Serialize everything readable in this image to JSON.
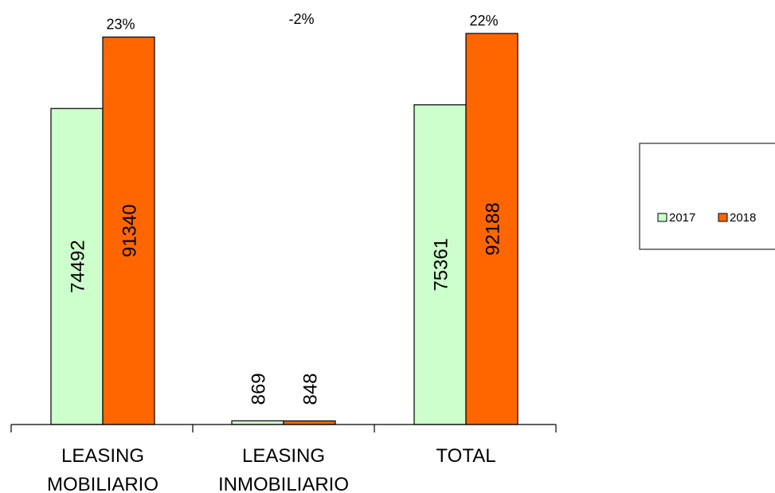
{
  "chart_data": {
    "type": "bar",
    "categories": [
      "LEASING MOBILIARIO",
      "LEASING INMOBILIARIO",
      "TOTAL"
    ],
    "category_lines": [
      [
        "LEASING",
        "MOBILIARIO"
      ],
      [
        "LEASING",
        "INMOBILIARIO"
      ],
      [
        "TOTAL"
      ]
    ],
    "series": [
      {
        "name": "2017",
        "values": [
          74492,
          869,
          75361
        ],
        "color": "#ccffcc"
      },
      {
        "name": "2018",
        "values": [
          91340,
          848,
          92188
        ],
        "color": "#ff6600"
      }
    ],
    "change_labels": [
      "23%",
      "-2%",
      "22%"
    ],
    "ylim": [
      0,
      92188
    ],
    "grid": false,
    "legend_position": "right",
    "title": "",
    "xlabel": "",
    "ylabel": ""
  }
}
